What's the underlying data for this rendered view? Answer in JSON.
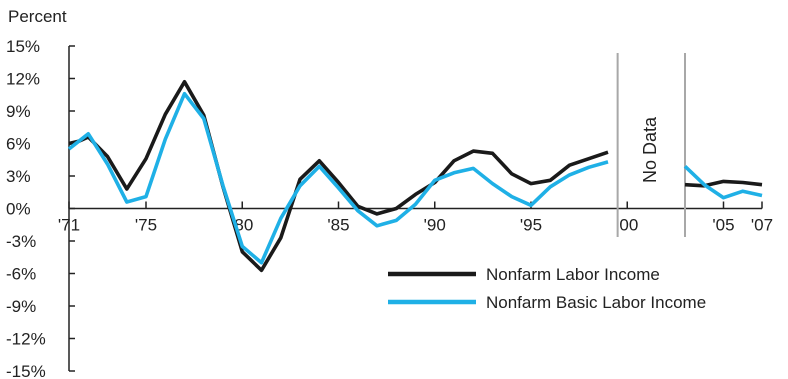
{
  "chart_data": {
    "type": "line",
    "title": "",
    "ylabel": "Percent",
    "xlabel": "",
    "ylim": [
      -15,
      15
    ],
    "xlim": [
      1971,
      2007
    ],
    "yticks": [
      15,
      12,
      9,
      6,
      3,
      0,
      -3,
      -6,
      -9,
      -12,
      -15
    ],
    "ytick_labels": [
      "15%",
      "12%",
      "9%",
      "6%",
      "3%",
      "0%",
      "-3%",
      "-6%",
      "-9%",
      "-12%",
      "-15%"
    ],
    "xticks": [
      1971,
      1975,
      1980,
      1985,
      1990,
      1995,
      2000,
      2005,
      2007
    ],
    "xtick_labels": [
      "'71",
      "'75",
      "'80",
      "'85",
      "'90",
      "'95",
      "'00",
      "'05",
      "'07"
    ],
    "no_data_label": "No Data",
    "no_data_range": [
      1999.5,
      2003
    ],
    "series": [
      {
        "name": "Nonfarm Labor Income",
        "color": "#1a1a1a",
        "segments": [
          {
            "x": [
              1971,
              1971.5,
              1972,
              1973,
              1974,
              1975,
              1976,
              1977,
              1978,
              1979,
              1980,
              1981,
              1982,
              1983,
              1984,
              1985,
              1986,
              1987,
              1988,
              1989,
              1990,
              1991,
              1992,
              1993,
              1994,
              1995,
              1996,
              1997,
              1998,
              1999
            ],
            "y": [
              6.0,
              6.2,
              6.6,
              4.8,
              1.8,
              4.6,
              8.7,
              11.7,
              8.6,
              2.0,
              -4.0,
              -5.7,
              -2.7,
              2.7,
              4.4,
              2.4,
              0.2,
              -0.5,
              0.0,
              1.3,
              2.4,
              4.4,
              5.3,
              5.1,
              3.2,
              2.3,
              2.6,
              4.0,
              4.6,
              5.2
            ]
          },
          {
            "x": [
              2003,
              2004,
              2005,
              2006,
              2007
            ],
            "y": [
              2.2,
              2.1,
              2.5,
              2.4,
              2.2
            ]
          }
        ]
      },
      {
        "name": "Nonfarm Basic Labor Income",
        "color": "#1fb0e6",
        "segments": [
          {
            "x": [
              1971,
              1972,
              1973,
              1974,
              1975,
              1976,
              1977,
              1978,
              1979,
              1980,
              1981,
              1982,
              1983,
              1984,
              1985,
              1986,
              1987,
              1988,
              1989,
              1990,
              1991,
              1992,
              1993,
              1994,
              1995,
              1996,
              1997,
              1998,
              1999
            ],
            "y": [
              5.5,
              6.9,
              4.1,
              0.6,
              1.1,
              6.4,
              10.6,
              8.3,
              2.1,
              -3.5,
              -5.0,
              -0.9,
              2.1,
              3.9,
              1.9,
              -0.2,
              -1.6,
              -1.1,
              0.4,
              2.6,
              3.3,
              3.7,
              2.3,
              1.1,
              0.3,
              2.0,
              3.1,
              3.8,
              4.3
            ]
          },
          {
            "x": [
              2003,
              2004,
              2005,
              2006,
              2007
            ],
            "y": [
              3.9,
              2.2,
              1.0,
              1.6,
              1.2
            ]
          }
        ]
      }
    ]
  }
}
